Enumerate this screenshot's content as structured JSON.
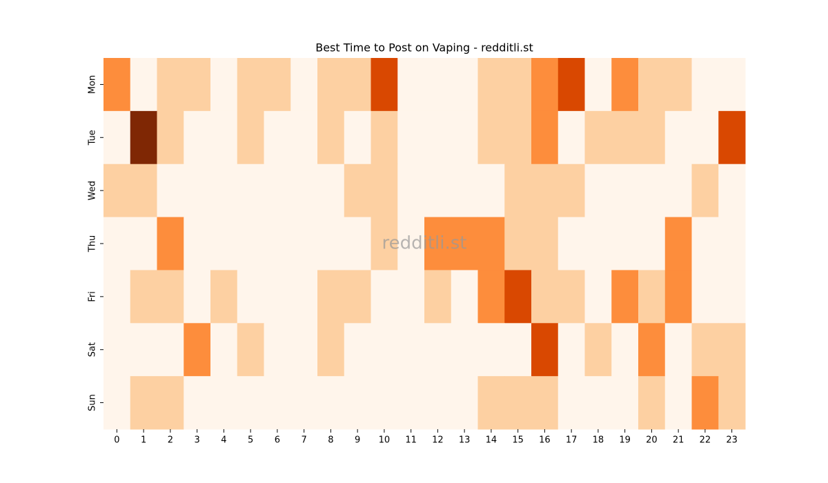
{
  "chart_data": {
    "type": "heatmap",
    "title": "Best Time to Post on Vaping - redditli.st",
    "watermark": "redditli.st",
    "x": [
      0,
      1,
      2,
      3,
      4,
      5,
      6,
      7,
      8,
      9,
      10,
      11,
      12,
      13,
      14,
      15,
      16,
      17,
      18,
      19,
      20,
      21,
      22,
      23
    ],
    "y": [
      "Mon",
      "Tue",
      "Wed",
      "Thu",
      "Fri",
      "Sat",
      "Sun"
    ],
    "values": [
      [
        2,
        0,
        1,
        1,
        0,
        1,
        1,
        0,
        1,
        1,
        3,
        0,
        0,
        0,
        1,
        1,
        2,
        3,
        0,
        2,
        1,
        1,
        0,
        0
      ],
      [
        0,
        4,
        1,
        0,
        0,
        1,
        0,
        0,
        1,
        0,
        1,
        0,
        0,
        0,
        1,
        1,
        2,
        0,
        1,
        1,
        1,
        0,
        0,
        3
      ],
      [
        1,
        1,
        0,
        0,
        0,
        0,
        0,
        0,
        0,
        1,
        1,
        0,
        0,
        0,
        0,
        1,
        1,
        1,
        0,
        0,
        0,
        0,
        1,
        0
      ],
      [
        0,
        0,
        2,
        0,
        0,
        0,
        0,
        0,
        0,
        0,
        1,
        0,
        2,
        2,
        2,
        1,
        1,
        0,
        0,
        0,
        0,
        2,
        0,
        0
      ],
      [
        0,
        1,
        1,
        0,
        1,
        0,
        0,
        0,
        1,
        1,
        0,
        0,
        1,
        0,
        2,
        3,
        1,
        1,
        0,
        2,
        1,
        2,
        0,
        0
      ],
      [
        0,
        0,
        0,
        2,
        0,
        1,
        0,
        0,
        1,
        0,
        0,
        0,
        0,
        0,
        0,
        0,
        3,
        0,
        1,
        0,
        2,
        0,
        1,
        1
      ],
      [
        0,
        1,
        1,
        0,
        0,
        0,
        0,
        0,
        0,
        0,
        0,
        0,
        0,
        0,
        1,
        1,
        1,
        0,
        0,
        0,
        1,
        0,
        2,
        1
      ]
    ],
    "zlim": [
      0,
      4
    ],
    "colorscale": [
      "#fff5eb",
      "#fdd0a2",
      "#fd8d3c",
      "#d94801",
      "#7f2704"
    ]
  }
}
